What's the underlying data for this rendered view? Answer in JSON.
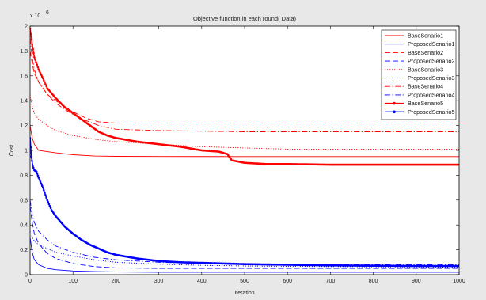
{
  "window": {
    "background": "#e8e8e8"
  },
  "chart_data": {
    "type": "line",
    "title": "Objective function in each round( Data)",
    "xlabel": "Iteration",
    "ylabel": "Cost",
    "exponent_label": "x 10",
    "exponent_power": "6",
    "xlim": [
      0,
      1000
    ],
    "ylim": [
      0,
      2
    ],
    "xticks": [
      0,
      100,
      200,
      300,
      400,
      500,
      600,
      700,
      800,
      900,
      1000
    ],
    "yticks": [
      0,
      0.2,
      0.4,
      0.6,
      0.8,
      1,
      1.2,
      1.4,
      1.6,
      1.8,
      2
    ],
    "ytick_labels": [
      "0",
      "0.2",
      "0.4",
      "0.6",
      "0.8",
      "1",
      "1.2",
      "1.4",
      "1.6",
      "1.8",
      "2"
    ],
    "grid": false,
    "legend_position": "top-right",
    "series": [
      {
        "name": "BaseSenario1",
        "color": "#ff0000",
        "style": "solid",
        "marker": "none",
        "points": [
          [
            0,
            1.2
          ],
          [
            5,
            1.1
          ],
          [
            10,
            1.05
          ],
          [
            20,
            1.0
          ],
          [
            40,
            0.99
          ],
          [
            60,
            0.98
          ],
          [
            100,
            0.965
          ],
          [
            150,
            0.955
          ],
          [
            200,
            0.952
          ],
          [
            300,
            0.951
          ],
          [
            500,
            0.95
          ],
          [
            1000,
            0.95
          ]
        ]
      },
      {
        "name": "ProposedSenario1",
        "color": "#0000ff",
        "style": "solid",
        "marker": "none",
        "points": [
          [
            0,
            0.3
          ],
          [
            5,
            0.18
          ],
          [
            10,
            0.12
          ],
          [
            20,
            0.08
          ],
          [
            40,
            0.05
          ],
          [
            60,
            0.04
          ],
          [
            100,
            0.03
          ],
          [
            150,
            0.025
          ],
          [
            200,
            0.022
          ],
          [
            300,
            0.02
          ],
          [
            500,
            0.02
          ],
          [
            1000,
            0.02
          ]
        ]
      },
      {
        "name": "BaseSenario2",
        "color": "#ff0000",
        "style": "dash",
        "marker": "none",
        "points": [
          [
            0,
            1.8
          ],
          [
            5,
            1.7
          ],
          [
            10,
            1.62
          ],
          [
            20,
            1.55
          ],
          [
            40,
            1.45
          ],
          [
            60,
            1.4
          ],
          [
            80,
            1.35
          ],
          [
            100,
            1.31
          ],
          [
            130,
            1.26
          ],
          [
            160,
            1.23
          ],
          [
            200,
            1.22
          ],
          [
            400,
            1.22
          ],
          [
            1000,
            1.22
          ]
        ]
      },
      {
        "name": "ProposedSenario2",
        "color": "#0000ff",
        "style": "dash",
        "marker": "none",
        "points": [
          [
            0,
            0.55
          ],
          [
            5,
            0.42
          ],
          [
            10,
            0.33
          ],
          [
            20,
            0.25
          ],
          [
            40,
            0.17
          ],
          [
            60,
            0.13
          ],
          [
            100,
            0.09
          ],
          [
            150,
            0.065
          ],
          [
            200,
            0.055
          ],
          [
            300,
            0.05
          ],
          [
            500,
            0.05
          ],
          [
            1000,
            0.05
          ]
        ]
      },
      {
        "name": "BaseSenario3",
        "color": "#ff0000",
        "style": "dot",
        "marker": "none",
        "points": [
          [
            0,
            1.45
          ],
          [
            5,
            1.35
          ],
          [
            10,
            1.3
          ],
          [
            20,
            1.25
          ],
          [
            40,
            1.2
          ],
          [
            60,
            1.16
          ],
          [
            100,
            1.12
          ],
          [
            150,
            1.09
          ],
          [
            200,
            1.07
          ],
          [
            300,
            1.05
          ],
          [
            400,
            1.03
          ],
          [
            500,
            1.02
          ],
          [
            600,
            1.01
          ],
          [
            1000,
            1.01
          ]
        ]
      },
      {
        "name": "ProposedSenario3",
        "color": "#0000ff",
        "style": "dot",
        "marker": "none",
        "points": [
          [
            0,
            0.35
          ],
          [
            5,
            0.3
          ],
          [
            10,
            0.27
          ],
          [
            20,
            0.24
          ],
          [
            40,
            0.21
          ],
          [
            60,
            0.18
          ],
          [
            100,
            0.15
          ],
          [
            150,
            0.12
          ],
          [
            200,
            0.1
          ],
          [
            300,
            0.085
          ],
          [
            400,
            0.075
          ],
          [
            500,
            0.07
          ],
          [
            700,
            0.065
          ],
          [
            1000,
            0.06
          ]
        ]
      },
      {
        "name": "BaseSenario4",
        "color": "#ff0000",
        "style": "dashdot",
        "marker": "none",
        "points": [
          [
            0,
            1.9
          ],
          [
            5,
            1.75
          ],
          [
            10,
            1.65
          ],
          [
            20,
            1.55
          ],
          [
            40,
            1.45
          ],
          [
            60,
            1.38
          ],
          [
            80,
            1.33
          ],
          [
            100,
            1.29
          ],
          [
            130,
            1.24
          ],
          [
            160,
            1.2
          ],
          [
            200,
            1.17
          ],
          [
            300,
            1.16
          ],
          [
            500,
            1.15
          ],
          [
            1000,
            1.15
          ]
        ]
      },
      {
        "name": "ProposedSenario4",
        "color": "#0000ff",
        "style": "dashdot",
        "marker": "none",
        "points": [
          [
            0,
            0.6
          ],
          [
            5,
            0.48
          ],
          [
            10,
            0.42
          ],
          [
            20,
            0.35
          ],
          [
            40,
            0.28
          ],
          [
            60,
            0.23
          ],
          [
            100,
            0.18
          ],
          [
            150,
            0.14
          ],
          [
            200,
            0.12
          ],
          [
            300,
            0.1
          ],
          [
            400,
            0.09
          ],
          [
            500,
            0.085
          ],
          [
            700,
            0.08
          ],
          [
            1000,
            0.08
          ]
        ]
      },
      {
        "name": "BaseSenario5",
        "color": "#ff0000",
        "style": "solid",
        "marker": "dot",
        "points": [
          [
            0,
            1.98
          ],
          [
            5,
            1.85
          ],
          [
            10,
            1.75
          ],
          [
            20,
            1.65
          ],
          [
            30,
            1.58
          ],
          [
            40,
            1.5
          ],
          [
            60,
            1.42
          ],
          [
            80,
            1.35
          ],
          [
            100,
            1.3
          ],
          [
            120,
            1.25
          ],
          [
            140,
            1.2
          ],
          [
            160,
            1.15
          ],
          [
            180,
            1.12
          ],
          [
            200,
            1.1
          ],
          [
            250,
            1.07
          ],
          [
            300,
            1.05
          ],
          [
            350,
            1.03
          ],
          [
            400,
            1.0
          ],
          [
            440,
            0.99
          ],
          [
            460,
            0.97
          ],
          [
            470,
            0.92
          ],
          [
            500,
            0.9
          ],
          [
            550,
            0.89
          ],
          [
            600,
            0.89
          ],
          [
            700,
            0.885
          ],
          [
            800,
            0.885
          ],
          [
            900,
            0.885
          ],
          [
            1000,
            0.885
          ]
        ]
      },
      {
        "name": "ProposedSenario5",
        "color": "#0000ff",
        "style": "solid",
        "marker": "dot",
        "points": [
          [
            0,
            1.1
          ],
          [
            3,
            0.95
          ],
          [
            6,
            0.88
          ],
          [
            10,
            0.84
          ],
          [
            15,
            0.83
          ],
          [
            20,
            0.78
          ],
          [
            30,
            0.7
          ],
          [
            40,
            0.6
          ],
          [
            50,
            0.52
          ],
          [
            60,
            0.47
          ],
          [
            70,
            0.43
          ],
          [
            80,
            0.39
          ],
          [
            90,
            0.36
          ],
          [
            100,
            0.33
          ],
          [
            120,
            0.28
          ],
          [
            140,
            0.24
          ],
          [
            160,
            0.21
          ],
          [
            180,
            0.18
          ],
          [
            200,
            0.16
          ],
          [
            250,
            0.13
          ],
          [
            300,
            0.11
          ],
          [
            350,
            0.1
          ],
          [
            400,
            0.095
          ],
          [
            500,
            0.085
          ],
          [
            600,
            0.08
          ],
          [
            700,
            0.075
          ],
          [
            800,
            0.072
          ],
          [
            900,
            0.07
          ],
          [
            1000,
            0.07
          ]
        ]
      }
    ]
  }
}
